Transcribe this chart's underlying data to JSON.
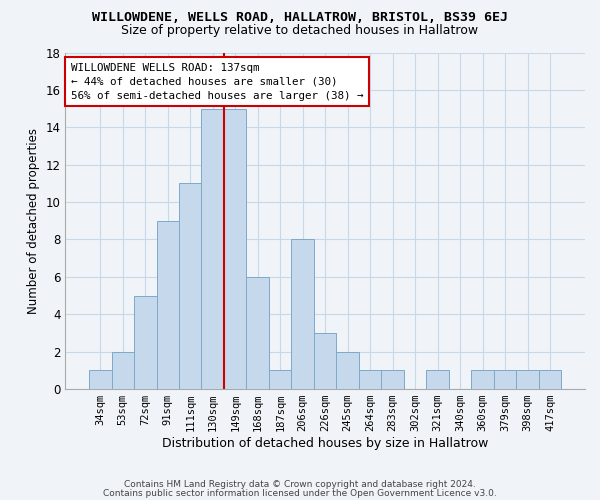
{
  "title": "WILLOWDENE, WELLS ROAD, HALLATROW, BRISTOL, BS39 6EJ",
  "subtitle": "Size of property relative to detached houses in Hallatrow",
  "xlabel": "Distribution of detached houses by size in Hallatrow",
  "ylabel": "Number of detached properties",
  "categories": [
    "34sqm",
    "53sqm",
    "72sqm",
    "91sqm",
    "111sqm",
    "130sqm",
    "149sqm",
    "168sqm",
    "187sqm",
    "206sqm",
    "226sqm",
    "245sqm",
    "264sqm",
    "283sqm",
    "302sqm",
    "321sqm",
    "340sqm",
    "360sqm",
    "379sqm",
    "398sqm",
    "417sqm"
  ],
  "values": [
    1,
    2,
    5,
    9,
    11,
    15,
    15,
    6,
    1,
    8,
    3,
    2,
    1,
    1,
    0,
    1,
    0,
    1,
    1,
    1,
    1
  ],
  "bar_color": "#c5d8ec",
  "bar_edgecolor": "#7baac8",
  "vline_index": 5.5,
  "vline_color": "#cc0000",
  "annotation_line1": "WILLOWDENE WELLS ROAD: 137sqm",
  "annotation_line2": "← 44% of detached houses are smaller (30)",
  "annotation_line3": "56% of semi-detached houses are larger (38) →",
  "annotation_box_facecolor": "#ffffff",
  "annotation_box_edgecolor": "#cc0000",
  "ylim": [
    0,
    18
  ],
  "yticks": [
    0,
    2,
    4,
    6,
    8,
    10,
    12,
    14,
    16,
    18
  ],
  "footnote1": "Contains HM Land Registry data © Crown copyright and database right 2024.",
  "footnote2": "Contains public sector information licensed under the Open Government Licence v3.0.",
  "bg_color": "#f0f4f8",
  "grid_color": "#c8d8e8"
}
